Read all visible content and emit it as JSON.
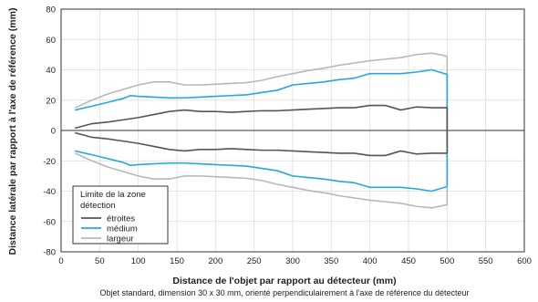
{
  "chart_data": {
    "type": "line",
    "xlabel": "Distance de l'objet par rapport au détecteur (mm)",
    "ylabel": "Distance latérale par rapport à l'axe de référence (mm)",
    "caption": "Objet standard, dimension 30 x 30 mm, orienté perpendiculairement à l'axe de référence du détecteur",
    "xlim": [
      0,
      600
    ],
    "ylim": [
      -80,
      80
    ],
    "xticks": [
      0,
      50,
      100,
      150,
      200,
      250,
      300,
      350,
      400,
      450,
      500,
      550,
      600
    ],
    "yticks": [
      -80,
      -60,
      -40,
      -20,
      0,
      20,
      40,
      60,
      80
    ],
    "grid": true,
    "legend": {
      "title": "Limite de la zone détection",
      "title_lines": [
        "Limite de la zone",
        "détection"
      ],
      "position": "lower-left"
    },
    "series": [
      {
        "name": "étroites",
        "color": "#555555",
        "x": [
          18,
          40,
          60,
          80,
          100,
          120,
          140,
          160,
          180,
          200,
          220,
          240,
          260,
          280,
          300,
          320,
          340,
          360,
          380,
          400,
          420,
          440,
          460,
          480,
          500
        ],
        "upper": [
          1.5,
          4.5,
          5.5,
          7,
          8.5,
          10.5,
          12.5,
          13.5,
          12.5,
          12.5,
          12,
          12.5,
          13,
          13,
          13.5,
          14,
          14.5,
          15,
          15,
          16.5,
          16.5,
          13.5,
          15.5,
          15,
          15
        ],
        "lower": [
          -1.5,
          -4.5,
          -5.5,
          -7,
          -8.5,
          -10.5,
          -12.5,
          -13.5,
          -12.5,
          -12.5,
          -12,
          -12.5,
          -13,
          -13,
          -13.5,
          -14,
          -14.5,
          -15,
          -15,
          -16.5,
          -16.5,
          -13.5,
          -15.5,
          -15,
          -15
        ]
      },
      {
        "name": "médium",
        "color": "#22a9e0",
        "x": [
          18,
          40,
          60,
          80,
          90,
          100,
          120,
          140,
          160,
          180,
          200,
          220,
          240,
          260,
          280,
          300,
          320,
          340,
          360,
          380,
          400,
          420,
          440,
          460,
          480,
          500
        ],
        "upper": [
          13.5,
          16,
          18.5,
          21,
          23,
          22.5,
          22,
          21.5,
          21.5,
          22,
          22.5,
          23,
          23.5,
          25,
          26.5,
          30,
          31,
          32,
          33.5,
          34.5,
          37.5,
          37.5,
          37.5,
          38.5,
          40,
          37
        ],
        "lower": [
          -13.5,
          -16,
          -18.5,
          -21,
          -23,
          -22.5,
          -22,
          -21.5,
          -21.5,
          -22,
          -22.5,
          -23,
          -23.5,
          -25,
          -26.5,
          -30,
          -31,
          -32,
          -33.5,
          -34.5,
          -37.5,
          -37.5,
          -37.5,
          -38.5,
          -40,
          -37
        ]
      },
      {
        "name": "largeur",
        "color": "#b8b8b8",
        "x": [
          18,
          40,
          60,
          80,
          100,
          120,
          140,
          160,
          180,
          200,
          220,
          240,
          260,
          280,
          300,
          320,
          340,
          360,
          380,
          400,
          420,
          440,
          460,
          480,
          500
        ],
        "upper": [
          15,
          20,
          24,
          27,
          30,
          32,
          32,
          30,
          30,
          30.5,
          31,
          31.5,
          33,
          35.5,
          37.5,
          39.5,
          41,
          43,
          44.5,
          46,
          47,
          48,
          50,
          51,
          49
        ],
        "lower": [
          -15,
          -20,
          -24,
          -27,
          -30,
          -32,
          -32,
          -30,
          -30,
          -30.5,
          -31,
          -31.5,
          -33,
          -35.5,
          -37.5,
          -39.5,
          -41,
          -43,
          -44.5,
          -46,
          -47,
          -48,
          -50,
          -51,
          -49
        ]
      }
    ]
  }
}
